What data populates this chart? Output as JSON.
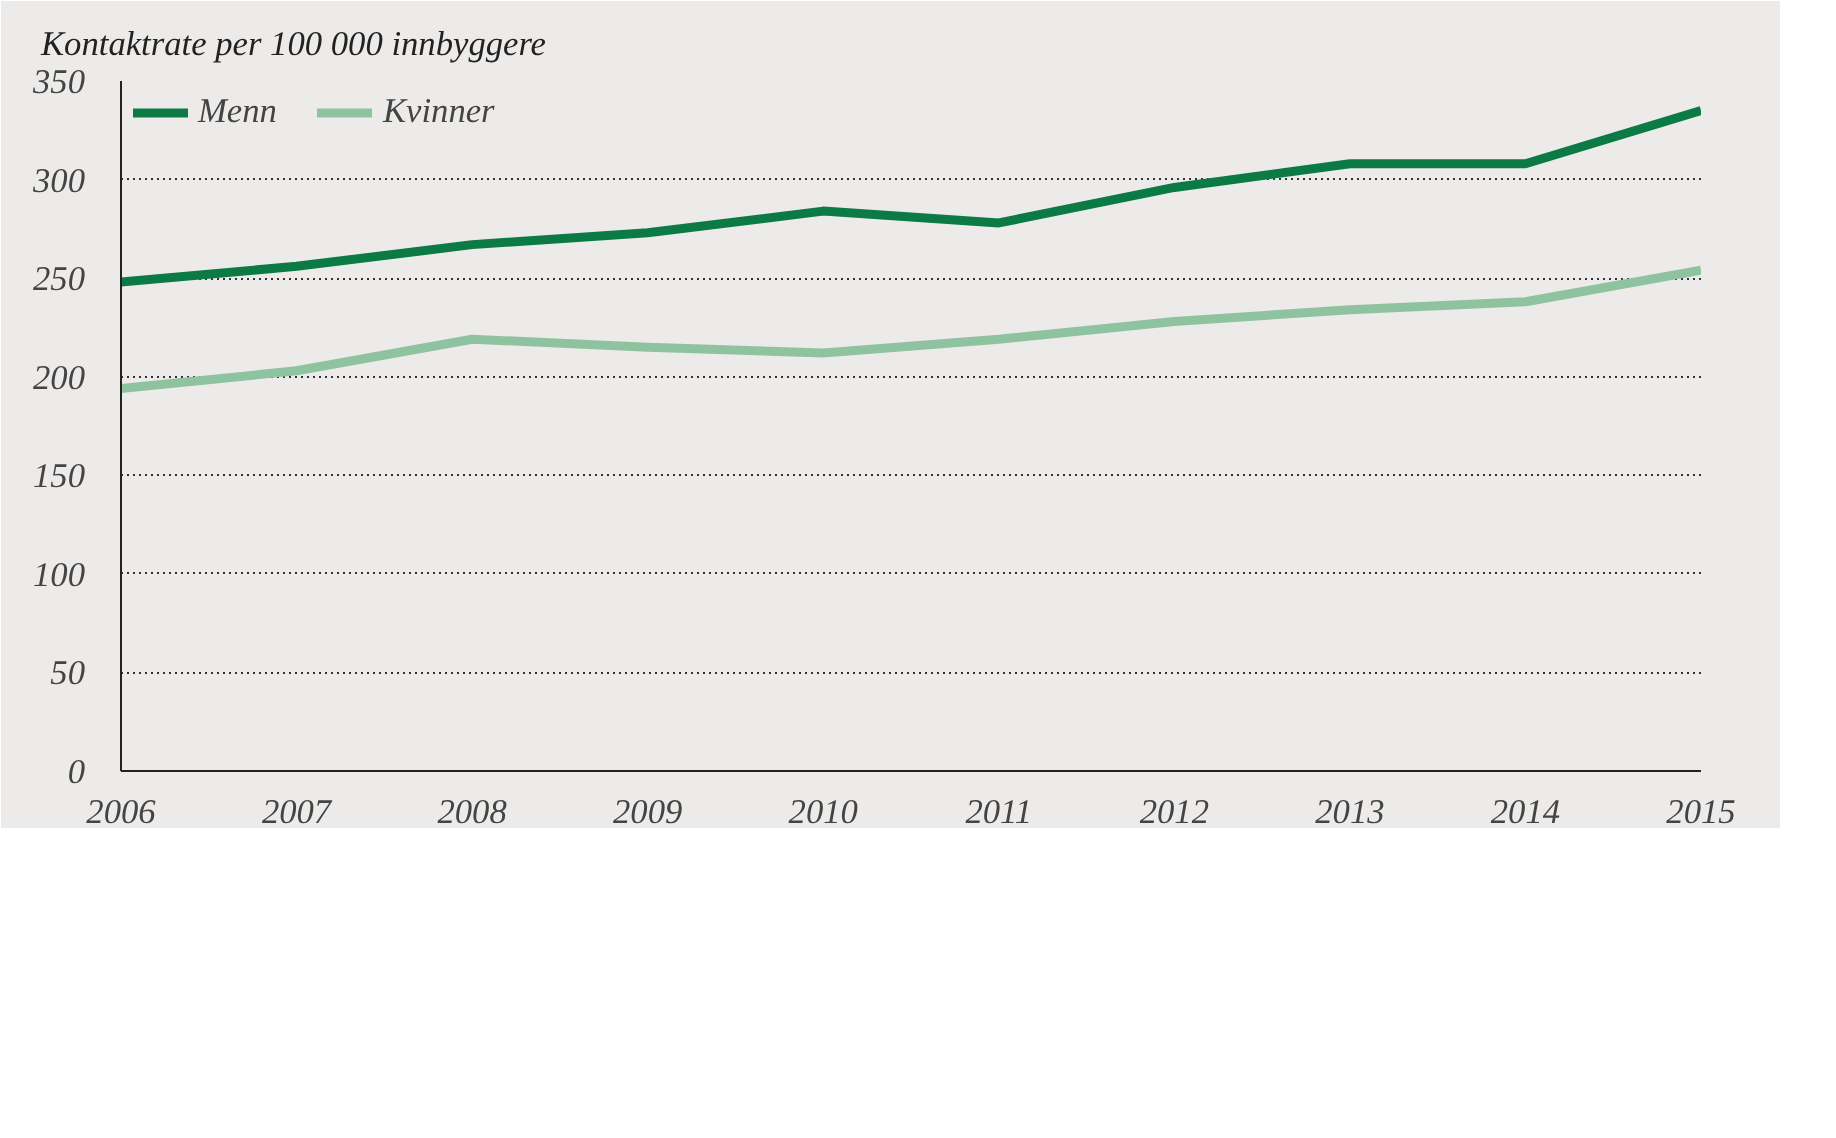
{
  "chart_data": {
    "type": "line",
    "ylabel": "Kontaktrate per 100 000 innbyggere",
    "x": [
      2006,
      2007,
      2008,
      2009,
      2010,
      2011,
      2012,
      2013,
      2014,
      2015
    ],
    "xlim": [
      2006,
      2015
    ],
    "xticks": [
      2006,
      2007,
      2008,
      2009,
      2010,
      2011,
      2012,
      2013,
      2014,
      2015
    ],
    "ylim": [
      0,
      350
    ],
    "yticks": [
      0,
      50,
      100,
      150,
      200,
      250,
      300,
      350
    ],
    "series": [
      {
        "name": "Menn",
        "color": "#0b7a45",
        "values": [
          248,
          256,
          267,
          273,
          284,
          278,
          296,
          308,
          308,
          335
        ]
      },
      {
        "name": "Kvinner",
        "color": "#8fc3a0",
        "values": [
          194,
          203,
          219,
          215,
          212,
          219,
          228,
          234,
          238,
          254
        ]
      }
    ],
    "grid": "y",
    "legend": "top left",
    "marker": "none",
    "line_style": "solid"
  }
}
